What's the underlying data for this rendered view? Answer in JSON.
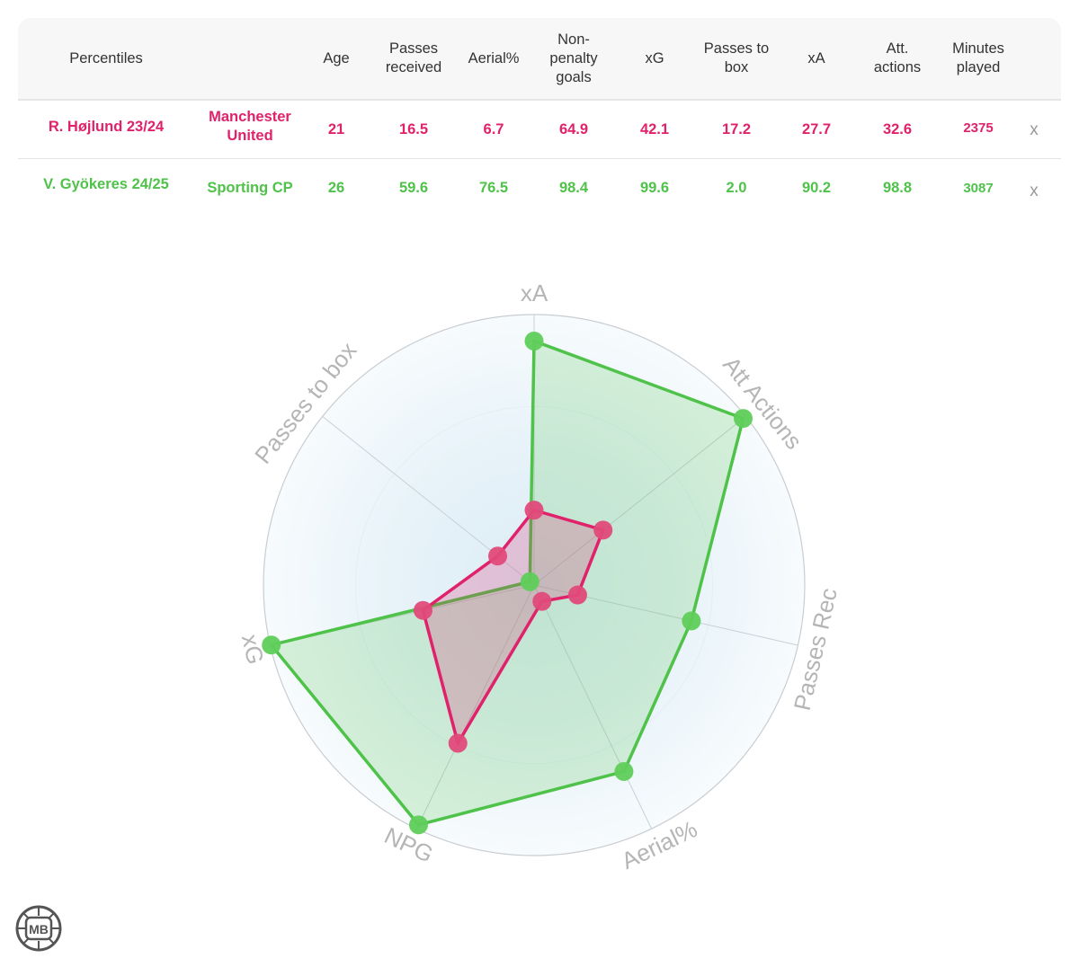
{
  "table": {
    "headers": {
      "percentiles": "Percentiles",
      "team": "",
      "age": "Age",
      "passes_received": "Passes received",
      "aerial": "Aerial%",
      "npg": "Non-penalty goals",
      "xg": "xG",
      "passes_to_box": "Passes to box",
      "xa": "xA",
      "att_actions": "Att. actions",
      "minutes": "Minutes played"
    },
    "rows": [
      {
        "player": "R. Højlund 23/24",
        "team": "Manchester United",
        "age": "21",
        "passes_received": "16.5",
        "aerial": "6.7",
        "npg": "64.9",
        "xg": "42.1",
        "passes_to_box": "17.2",
        "xa": "27.7",
        "att_actions": "32.6",
        "minutes": "2375",
        "remove": "x",
        "color": "#e0226b"
      },
      {
        "player": "V. Gyökeres 24/25",
        "team": "Sporting CP",
        "age": "26",
        "passes_received": "59.6",
        "aerial": "76.5",
        "npg": "98.4",
        "xg": "99.6",
        "passes_to_box": "2.0",
        "xa": "90.2",
        "att_actions": "98.8",
        "minutes": "3087",
        "remove": "x",
        "color": "#4fc24a"
      }
    ]
  },
  "chart_data": {
    "type": "radar",
    "title": "",
    "axes": [
      "xA",
      "Att Actions",
      "Passes Rec",
      "Aerial%",
      "NPG",
      "xG",
      "Passes to box"
    ],
    "range": [
      0,
      100
    ],
    "grid": true,
    "series": [
      {
        "name": "R. Højlund 23/24",
        "color": "#e0226b",
        "values": [
          27.7,
          32.6,
          16.5,
          6.7,
          64.9,
          42.1,
          17.2
        ]
      },
      {
        "name": "V. Gyökeres 24/25",
        "color": "#4fc24a",
        "values": [
          90.2,
          98.8,
          59.6,
          76.5,
          98.4,
          99.6,
          2.0
        ]
      }
    ]
  },
  "logo": {
    "text": "MB"
  }
}
